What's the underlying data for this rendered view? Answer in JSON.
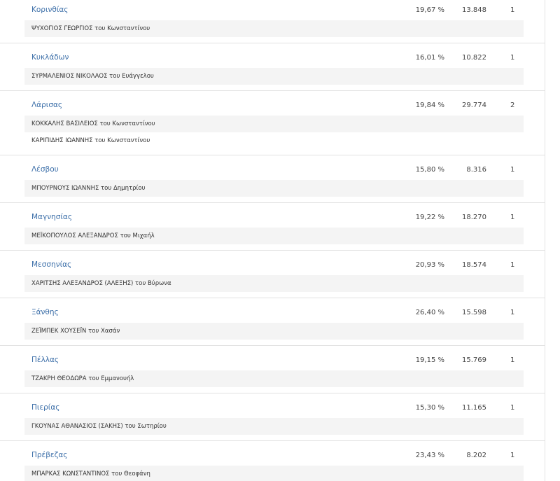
{
  "rows": [
    {
      "region": "Κορινθίας",
      "percent": "19,67 %",
      "votes": "13.848",
      "seats": "1",
      "candidates": [
        "ΨΥΧΟΓΙΟΣ ΓΕΩΡΓΙΟΣ του Κωνσταντίνου"
      ]
    },
    {
      "region": "Κυκλάδων",
      "percent": "16,01 %",
      "votes": "10.822",
      "seats": "1",
      "candidates": [
        "ΣΥΡΜΑΛΕΝΙΟΣ ΝΙΚΟΛΑΟΣ του Ευάγγελου"
      ]
    },
    {
      "region": "Λάρισας",
      "percent": "19,84 %",
      "votes": "29.774",
      "seats": "2",
      "candidates": [
        "ΚΟΚΚΑΛΗΣ ΒΑΣΙΛΕΙΟΣ του Κωνσταντίνου",
        "ΚΑΡΙΠΙΔΗΣ ΙΩΑΝΝΗΣ του Κωνσταντίνου"
      ]
    },
    {
      "region": "Λέσβου",
      "percent": "15,80 %",
      "votes": "8.316",
      "seats": "1",
      "candidates": [
        "ΜΠΟΥΡΝΟΥΣ ΙΩΑΝΝΗΣ του Δημητρίου"
      ]
    },
    {
      "region": "Μαγνησίας",
      "percent": "19,22 %",
      "votes": "18.270",
      "seats": "1",
      "candidates": [
        "ΜΕΪΚΟΠΟΥΛΟΣ ΑΛΕΞΑΝΔΡΟΣ του Μιχαήλ"
      ]
    },
    {
      "region": "Μεσσηνίας",
      "percent": "20,93 %",
      "votes": "18.574",
      "seats": "1",
      "candidates": [
        "ΧΑΡΙΤΣΗΣ ΑΛΕΞΑΝΔΡΟΣ (ΑΛΕΞΗΣ) του Βύρωνα"
      ]
    },
    {
      "region": "Ξάνθης",
      "percent": "26,40 %",
      "votes": "15.598",
      "seats": "1",
      "candidates": [
        "ΖΕΪΜΠΕΚ ΧΟΥΣΕΪΝ του Χασάν"
      ]
    },
    {
      "region": "Πέλλας",
      "percent": "19,15 %",
      "votes": "15.769",
      "seats": "1",
      "candidates": [
        "ΤΖΑΚΡΗ ΘΕΟΔΩΡΑ του Εμμανουήλ"
      ]
    },
    {
      "region": "Πιερίας",
      "percent": "15,30 %",
      "votes": "11.165",
      "seats": "1",
      "candidates": [
        "ΓΚΟΥΝΑΣ ΑΘΑΝΑΣΙΟΣ (ΣΑΚΗΣ) του Σωτηρίου"
      ]
    },
    {
      "region": "Πρέβεζας",
      "percent": "23,43 %",
      "votes": "8.202",
      "seats": "1",
      "candidates": [
        "ΜΠΑΡΚΑΣ ΚΩΝΣΤΑΝΤΙΝΟΣ του Θεοφάνη"
      ]
    }
  ]
}
